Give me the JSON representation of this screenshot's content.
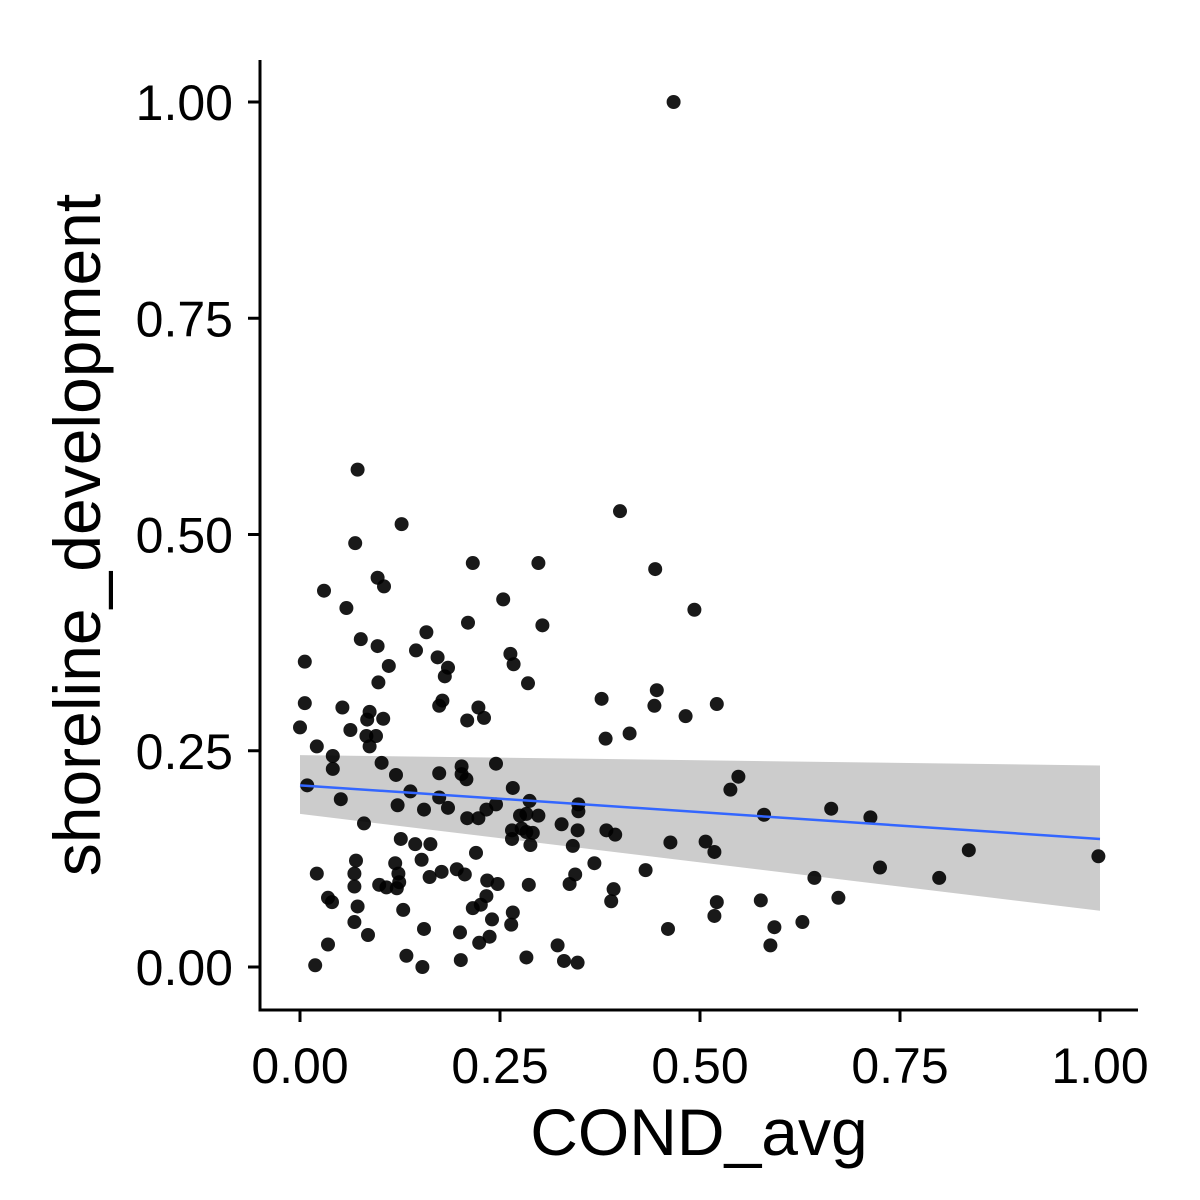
{
  "chart_data": {
    "type": "scatter",
    "title": "",
    "xlabel": "COND_avg",
    "ylabel": "shoreline_development",
    "xlim": [
      -0.05,
      1.05
    ],
    "ylim": [
      -0.05,
      1.05
    ],
    "x_ticks": [
      "0.00",
      "0.25",
      "0.50",
      "0.75",
      "1.00"
    ],
    "y_ticks": [
      "0.00",
      "0.25",
      "0.50",
      "0.75",
      "1.00"
    ],
    "grid": false,
    "legend": "none",
    "colors": {
      "points": "#000000",
      "fit_line": "#3366FF",
      "confidence_band": "#cccccc"
    },
    "fit": {
      "method": "linear",
      "x": [
        0,
        1
      ],
      "y": [
        0.21,
        0.148
      ],
      "ci_lower": [
        0.177,
        0.065
      ],
      "ci_upper": [
        0.245,
        0.233
      ]
    },
    "series": [
      {
        "points": [
          [
            0.467,
            1.0
          ],
          [
            0.072,
            0.575
          ],
          [
            0.127,
            0.512
          ],
          [
            0.4,
            0.527
          ],
          [
            0.069,
            0.49
          ],
          [
            0.298,
            0.467
          ],
          [
            0.216,
            0.467
          ],
          [
            0.444,
            0.46
          ],
          [
            0.097,
            0.45
          ],
          [
            0.105,
            0.44
          ],
          [
            0.03,
            0.435
          ],
          [
            0.254,
            0.425
          ],
          [
            0.058,
            0.415
          ],
          [
            0.493,
            0.413
          ],
          [
            0.21,
            0.398
          ],
          [
            0.303,
            0.395
          ],
          [
            0.158,
            0.387
          ],
          [
            0.076,
            0.379
          ],
          [
            0.097,
            0.371
          ],
          [
            0.263,
            0.362
          ],
          [
            0.145,
            0.366
          ],
          [
            0.172,
            0.358
          ],
          [
            0.006,
            0.353
          ],
          [
            0.111,
            0.348
          ],
          [
            0.267,
            0.35
          ],
          [
            0.185,
            0.346
          ],
          [
            0.181,
            0.336
          ],
          [
            0.285,
            0.328
          ],
          [
            0.098,
            0.329
          ],
          [
            0.446,
            0.32
          ],
          [
            0.377,
            0.31
          ],
          [
            0.006,
            0.305
          ],
          [
            0.178,
            0.308
          ],
          [
            0.521,
            0.304
          ],
          [
            0.443,
            0.302
          ],
          [
            0.223,
            0.3
          ],
          [
            0.053,
            0.3
          ],
          [
            0.174,
            0.302
          ],
          [
            0.087,
            0.295
          ],
          [
            0.104,
            0.287
          ],
          [
            0.23,
            0.288
          ],
          [
            0.084,
            0.286
          ],
          [
            0.209,
            0.285
          ],
          [
            0.482,
            0.29
          ],
          [
            0.0,
            0.277
          ],
          [
            0.095,
            0.267
          ],
          [
            0.063,
            0.274
          ],
          [
            0.412,
            0.27
          ],
          [
            0.083,
            0.267
          ],
          [
            0.382,
            0.264
          ],
          [
            0.087,
            0.255
          ],
          [
            0.021,
            0.255
          ],
          [
            0.041,
            0.244
          ],
          [
            0.102,
            0.236
          ],
          [
            0.245,
            0.235
          ],
          [
            0.202,
            0.232
          ],
          [
            0.202,
            0.223
          ],
          [
            0.041,
            0.229
          ],
          [
            0.174,
            0.224
          ],
          [
            0.548,
            0.22
          ],
          [
            0.12,
            0.222
          ],
          [
            0.208,
            0.217
          ],
          [
            0.009,
            0.21
          ],
          [
            0.266,
            0.207
          ],
          [
            0.138,
            0.203
          ],
          [
            0.538,
            0.205
          ],
          [
            0.174,
            0.196
          ],
          [
            0.051,
            0.194
          ],
          [
            0.287,
            0.192
          ],
          [
            0.348,
            0.188
          ],
          [
            0.245,
            0.188
          ],
          [
            0.122,
            0.187
          ],
          [
            0.185,
            0.184
          ],
          [
            0.155,
            0.182
          ],
          [
            0.664,
            0.183
          ],
          [
            0.233,
            0.182
          ],
          [
            0.283,
            0.177
          ],
          [
            0.348,
            0.18
          ],
          [
            0.275,
            0.175
          ],
          [
            0.58,
            0.176
          ],
          [
            0.223,
            0.172
          ],
          [
            0.298,
            0.175
          ],
          [
            0.209,
            0.172
          ],
          [
            0.713,
            0.173
          ],
          [
            0.08,
            0.166
          ],
          [
            0.327,
            0.165
          ],
          [
            0.277,
            0.16
          ],
          [
            0.347,
            0.158
          ],
          [
            0.383,
            0.158
          ],
          [
            0.283,
            0.156
          ],
          [
            0.265,
            0.158
          ],
          [
            0.394,
            0.153
          ],
          [
            0.291,
            0.155
          ],
          [
            0.126,
            0.148
          ],
          [
            0.341,
            0.14
          ],
          [
            0.288,
            0.141
          ],
          [
            0.507,
            0.145
          ],
          [
            0.463,
            0.144
          ],
          [
            0.265,
            0.148
          ],
          [
            0.144,
            0.142
          ],
          [
            0.163,
            0.142
          ],
          [
            0.836,
            0.135
          ],
          [
            0.518,
            0.133
          ],
          [
            0.22,
            0.132
          ],
          [
            0.152,
            0.124
          ],
          [
            0.07,
            0.123
          ],
          [
            0.119,
            0.12
          ],
          [
            0.368,
            0.12
          ],
          [
            0.725,
            0.115
          ],
          [
            0.998,
            0.128
          ],
          [
            0.432,
            0.112
          ],
          [
            0.177,
            0.11
          ],
          [
            0.196,
            0.113
          ],
          [
            0.206,
            0.107
          ],
          [
            0.021,
            0.108
          ],
          [
            0.068,
            0.108
          ],
          [
            0.123,
            0.108
          ],
          [
            0.162,
            0.104
          ],
          [
            0.643,
            0.103
          ],
          [
            0.344,
            0.107
          ],
          [
            0.799,
            0.103
          ],
          [
            0.234,
            0.1
          ],
          [
            0.124,
            0.098
          ],
          [
            0.286,
            0.095
          ],
          [
            0.247,
            0.096
          ],
          [
            0.099,
            0.095
          ],
          [
            0.108,
            0.092
          ],
          [
            0.068,
            0.093
          ],
          [
            0.337,
            0.096
          ],
          [
            0.121,
            0.091
          ],
          [
            0.392,
            0.09
          ],
          [
            0.233,
            0.082
          ],
          [
            0.673,
            0.08
          ],
          [
            0.035,
            0.08
          ],
          [
            0.576,
            0.077
          ],
          [
            0.521,
            0.075
          ],
          [
            0.04,
            0.075
          ],
          [
            0.389,
            0.076
          ],
          [
            0.226,
            0.072
          ],
          [
            0.072,
            0.07
          ],
          [
            0.216,
            0.068
          ],
          [
            0.129,
            0.066
          ],
          [
            0.266,
            0.063
          ],
          [
            0.518,
            0.059
          ],
          [
            0.068,
            0.052
          ],
          [
            0.24,
            0.055
          ],
          [
            0.264,
            0.049
          ],
          [
            0.155,
            0.044
          ],
          [
            0.46,
            0.044
          ],
          [
            0.628,
            0.052
          ],
          [
            0.593,
            0.046
          ],
          [
            0.085,
            0.037
          ],
          [
            0.2,
            0.04
          ],
          [
            0.237,
            0.035
          ],
          [
            0.224,
            0.028
          ],
          [
            0.035,
            0.026
          ],
          [
            0.588,
            0.025
          ],
          [
            0.322,
            0.025
          ],
          [
            0.133,
            0.013
          ],
          [
            0.283,
            0.011
          ],
          [
            0.201,
            0.008
          ],
          [
            0.33,
            0.007
          ],
          [
            0.347,
            0.005
          ],
          [
            0.019,
            0.002
          ],
          [
            0.153,
            0.0
          ]
        ]
      }
    ]
  }
}
